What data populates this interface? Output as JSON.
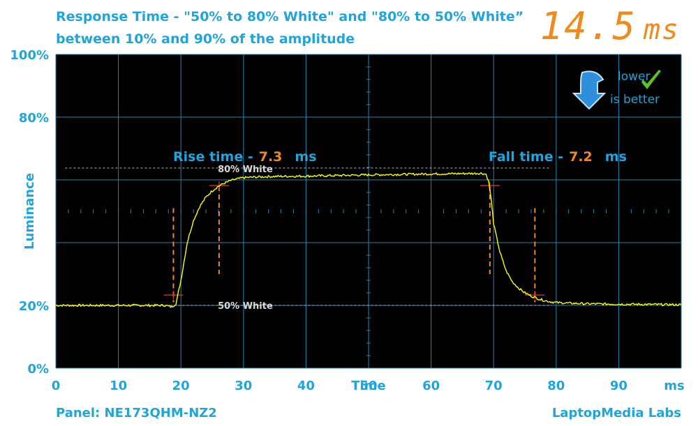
{
  "title_line1": "Response Time - \"50% to 80% White\" and \"80% to 50% White”",
  "title_line2": "between 10% and 90% of the amplitude",
  "big_value": "14.5",
  "big_unit": "ms",
  "panel": "Panel: NE173QHM-NZ2",
  "brand": "LaptopMedia Labs",
  "badge_line1": "lower",
  "badge_line2": "is better",
  "colors": {
    "accent": "#1fa4dc",
    "highlight": "#f08a1c",
    "trace": "#ffff00",
    "background": "#000000",
    "grid": "#1e87b4"
  },
  "chart_data": {
    "type": "line",
    "xlabel": "Time",
    "ylabel": "Luminance",
    "x_unit": "ms",
    "xlim": [
      0,
      100
    ],
    "ylim": [
      0,
      100
    ],
    "x_ticks": [
      "0",
      "10",
      "20",
      "30",
      "40",
      "50",
      "60",
      "70",
      "80",
      "90"
    ],
    "y_ticks": [
      "0%",
      "20%",
      "80%",
      "100%"
    ],
    "y_tick_values": [
      0,
      20,
      80,
      100
    ],
    "rise_label": "Rise time -",
    "rise_value": "7.3",
    "rise_unit": "ms",
    "fall_label": "Fall time -",
    "fall_value": "7.2",
    "fall_unit": "ms",
    "ref_high_label": "80% White",
    "ref_low_label": "50% White",
    "ref_high_y": 62,
    "ref_low_y": 20,
    "rise_markers_x": [
      18.8,
      26.1
    ],
    "fall_markers_x": [
      69.4,
      76.6
    ],
    "series": [
      {
        "x": [
          0,
          17.5,
          18.5,
          19.2,
          20,
          21,
          22,
          23,
          24,
          25,
          26,
          27,
          28,
          29,
          30,
          32,
          35,
          40,
          50,
          60,
          65,
          68,
          68.8,
          69.2,
          69.6,
          70,
          71,
          72,
          73,
          74,
          75,
          76,
          77,
          78,
          79,
          80,
          82,
          85,
          90,
          95,
          100
        ],
        "y": [
          20,
          20,
          19.5,
          20.5,
          28,
          40,
          47,
          51.5,
          54.5,
          56.5,
          58,
          59,
          59.8,
          60.3,
          60.7,
          60.9,
          61.1,
          61.2,
          61.6,
          61.9,
          62,
          62.1,
          61.8,
          59.5,
          54,
          46,
          37,
          31,
          27.5,
          25.5,
          24,
          23,
          22.2,
          21.6,
          21.2,
          20.9,
          20.7,
          20.5,
          20.4,
          20.3,
          20.2
        ]
      }
    ]
  }
}
